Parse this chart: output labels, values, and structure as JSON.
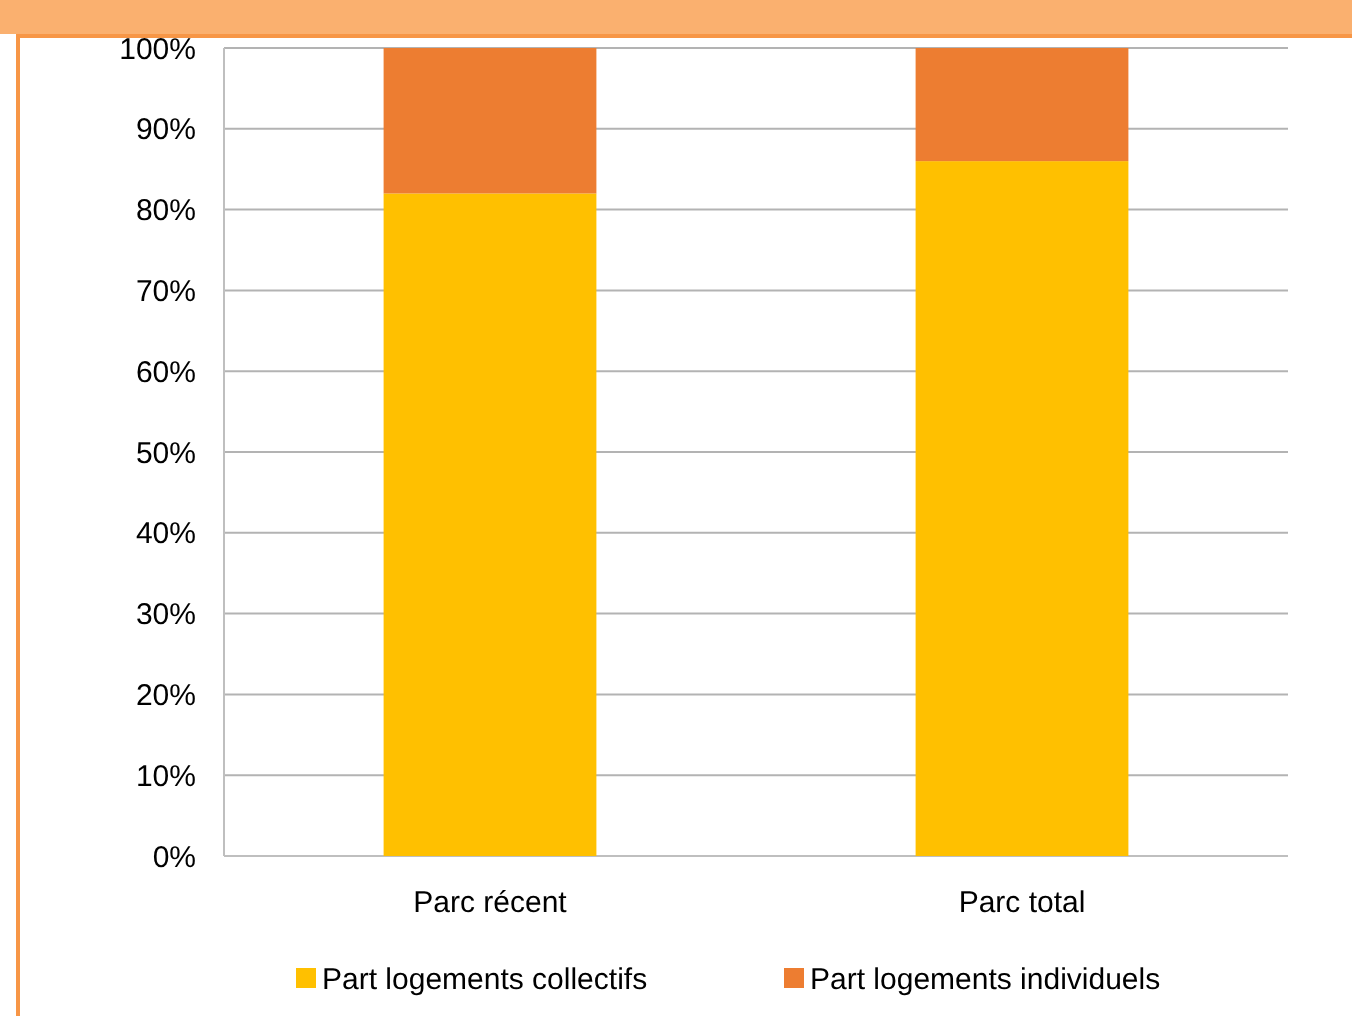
{
  "chart_data": {
    "type": "bar",
    "stacked": true,
    "categories": [
      "Parc récent",
      "Parc total"
    ],
    "series": [
      {
        "name": "Part logements collectifs",
        "color": "#ffc000",
        "values": [
          82,
          86
        ]
      },
      {
        "name": "Part logements individuels",
        "color": "#ed7d31",
        "values": [
          18,
          14
        ]
      }
    ],
    "ylim": [
      0,
      100
    ],
    "yticks": [
      {
        "value": 0,
        "label": "0%"
      },
      {
        "value": 10,
        "label": "10%"
      },
      {
        "value": 20,
        "label": "20%"
      },
      {
        "value": 30,
        "label": "30%"
      },
      {
        "value": 40,
        "label": "40%"
      },
      {
        "value": 50,
        "label": "50%"
      },
      {
        "value": 60,
        "label": "60%"
      },
      {
        "value": 70,
        "label": "70%"
      },
      {
        "value": 80,
        "label": "80%"
      },
      {
        "value": 90,
        "label": "90%"
      },
      {
        "value": 100,
        "label": "100%"
      }
    ],
    "grid": "y",
    "legend": "bottom"
  }
}
